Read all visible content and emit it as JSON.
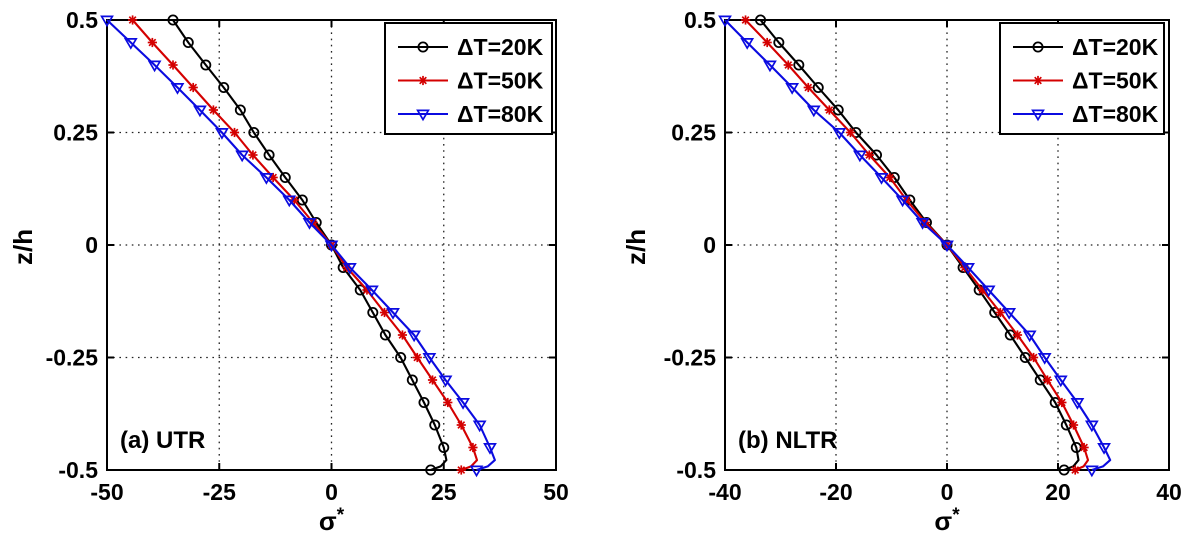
{
  "page": {
    "background": "#ffffff",
    "grid_color": "#222222",
    "axis_color": "#000000",
    "text_color": "#000000"
  },
  "chart_data": [
    {
      "type": "line",
      "id": "utr",
      "annotation": "(a) UTR",
      "xlabel_base": "σ",
      "xlabel_sup": "*",
      "ylabel": "z/h",
      "xlim": [
        -50,
        50
      ],
      "ylim": [
        -0.5,
        0.5
      ],
      "xticks": [
        -50,
        -25,
        0,
        25,
        50
      ],
      "yticks": [
        -0.5,
        -0.25,
        0,
        0.25,
        0.5
      ],
      "xtick_labels": [
        "-50",
        "-25",
        "0",
        "25",
        "50"
      ],
      "ytick_labels": [
        "-0.5",
        "-0.25",
        "0",
        "0.25",
        "0.5"
      ],
      "grid": true,
      "legend_position": "top-right",
      "z": [
        0.5,
        0.45,
        0.4,
        0.35,
        0.3,
        0.25,
        0.2,
        0.15,
        0.1,
        0.05,
        0,
        -0.05,
        -0.1,
        -0.15,
        -0.2,
        -0.25,
        -0.3,
        -0.35,
        -0.4,
        -0.45,
        -0.5
      ],
      "series": [
        {
          "name": "ΔT=20K",
          "color": "#000000",
          "marker": "circle",
          "values": [
            -35.3,
            -31.9,
            -28.0,
            -24.0,
            -20.3,
            -17.3,
            -13.9,
            -10.3,
            -6.5,
            -3.4,
            0.0,
            2.6,
            6.4,
            9.2,
            12.0,
            15.4,
            18.0,
            20.6,
            23.0,
            25.0,
            22.1
          ],
          "wall_bulge": {
            "z": -0.478,
            "value": 25.6
          }
        },
        {
          "name": "ΔT=50K",
          "color": "#d40000",
          "marker": "star",
          "values": [
            -44.3,
            -39.9,
            -35.3,
            -30.8,
            -26.3,
            -21.6,
            -17.5,
            -13.0,
            -8.3,
            -4.1,
            0.0,
            3.4,
            7.9,
            11.8,
            15.8,
            19.1,
            22.5,
            25.9,
            28.9,
            31.5,
            28.9
          ],
          "wall_bulge": {
            "z": -0.478,
            "value": 32.4
          }
        },
        {
          "name": "ΔT=80K",
          "color": "#0b0be0",
          "marker": "triangle-down",
          "values": [
            -50.0,
            -44.7,
            -39.4,
            -34.3,
            -29.3,
            -24.4,
            -19.9,
            -14.5,
            -9.4,
            -4.9,
            0.0,
            4.1,
            9.0,
            13.7,
            18.4,
            21.8,
            25.4,
            29.3,
            33.0,
            35.3,
            32.3
          ],
          "wall_bulge": {
            "z": -0.478,
            "value": 36.4
          }
        }
      ]
    },
    {
      "type": "line",
      "id": "nltr",
      "annotation": "(b) NLTR",
      "xlabel_base": "σ",
      "xlabel_sup": "*",
      "ylabel": "z/h",
      "xlim": [
        -40,
        40
      ],
      "ylim": [
        -0.5,
        0.5
      ],
      "xticks": [
        -40,
        -20,
        0,
        20,
        40
      ],
      "yticks": [
        -0.5,
        -0.25,
        0,
        0.25,
        0.5
      ],
      "xtick_labels": [
        "-40",
        "-20",
        "0",
        "20",
        "40"
      ],
      "ytick_labels": [
        "-0.5",
        "-0.25",
        "0",
        "0.25",
        "0.5"
      ],
      "grid": true,
      "legend_position": "top-right",
      "z": [
        0.5,
        0.45,
        0.4,
        0.35,
        0.3,
        0.25,
        0.2,
        0.15,
        0.1,
        0.05,
        0,
        -0.05,
        -0.1,
        -0.15,
        -0.2,
        -0.25,
        -0.3,
        -0.35,
        -0.4,
        -0.45,
        -0.5
      ],
      "series": [
        {
          "name": "ΔT=20K",
          "color": "#000000",
          "marker": "circle",
          "values": [
            -33.6,
            -30.3,
            -26.7,
            -23.2,
            -19.6,
            -16.4,
            -12.7,
            -9.5,
            -6.7,
            -3.7,
            0.0,
            2.9,
            5.8,
            8.6,
            11.4,
            14.1,
            16.8,
            19.5,
            21.5,
            23.3,
            21.1
          ],
          "wall_bulge": {
            "z": -0.478,
            "value": 23.7
          }
        },
        {
          "name": "ΔT=50K",
          "color": "#d40000",
          "marker": "star",
          "values": [
            -36.3,
            -32.4,
            -28.6,
            -25.0,
            -21.2,
            -17.4,
            -14.0,
            -10.3,
            -7.3,
            -3.9,
            0.0,
            3.2,
            6.4,
            9.6,
            12.7,
            15.6,
            18.1,
            20.7,
            22.8,
            24.7,
            23.1
          ],
          "wall_bulge": {
            "z": -0.478,
            "value": 25.4
          }
        },
        {
          "name": "ΔT=80K",
          "color": "#0b0be0",
          "marker": "triangle-down",
          "values": [
            -40.0,
            -36.0,
            -31.9,
            -27.9,
            -24.0,
            -19.4,
            -15.7,
            -11.8,
            -8.0,
            -4.4,
            0.0,
            3.8,
            7.5,
            11.2,
            14.9,
            17.6,
            20.5,
            23.5,
            26.1,
            28.3,
            26.1
          ],
          "wall_bulge": {
            "z": -0.478,
            "value": 29.4
          }
        }
      ]
    }
  ]
}
